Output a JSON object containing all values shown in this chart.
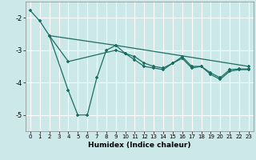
{
  "xlabel": "Humidex (Indice chaleur)",
  "bg_color": "#cce8e8",
  "grid_color": "#ffffff",
  "line_color": "#1a6e64",
  "ylim": [
    -5.5,
    -1.5
  ],
  "xlim": [
    -0.5,
    23.5
  ],
  "line1_x": [
    0,
    1,
    2,
    9,
    23
  ],
  "line1_y": [
    -1.78,
    -2.1,
    -2.55,
    -2.85,
    -3.5
  ],
  "line2_x": [
    2,
    4,
    5,
    6,
    7,
    8,
    9,
    10,
    11,
    12,
    13,
    14,
    15,
    16,
    17,
    18,
    19,
    20,
    21,
    22,
    23
  ],
  "line2_y": [
    -2.55,
    -4.25,
    -5.0,
    -5.0,
    -3.85,
    -3.0,
    -2.85,
    -3.1,
    -3.3,
    -3.5,
    -3.55,
    -3.6,
    -3.4,
    -3.25,
    -3.55,
    -3.5,
    -3.75,
    -3.9,
    -3.65,
    -3.6,
    -3.6
  ],
  "line3_x": [
    2,
    4,
    9,
    10,
    11,
    12,
    13,
    14,
    15,
    16,
    17,
    18,
    19,
    20,
    21,
    22,
    23
  ],
  "line3_y": [
    -2.55,
    -3.35,
    -3.0,
    -3.1,
    -3.2,
    -3.4,
    -3.5,
    -3.55,
    -3.4,
    -3.2,
    -3.5,
    -3.5,
    -3.7,
    -3.85,
    -3.6,
    -3.58,
    -3.58
  ],
  "yticks": [
    -5,
    -4,
    -3,
    -2
  ],
  "xticks": [
    0,
    1,
    2,
    3,
    4,
    5,
    6,
    7,
    8,
    9,
    10,
    11,
    12,
    13,
    14,
    15,
    16,
    17,
    18,
    19,
    20,
    21,
    22,
    23
  ]
}
